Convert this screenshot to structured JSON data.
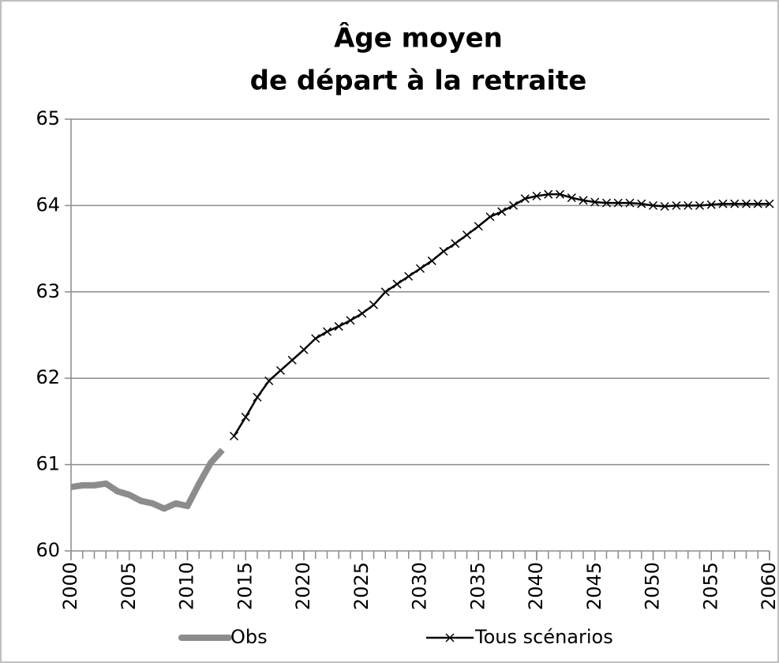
{
  "chart_data": {
    "type": "line",
    "title": [
      "Âge moyen",
      "de départ à la retraite"
    ],
    "x": [
      2000,
      2001,
      2002,
      2003,
      2004,
      2005,
      2006,
      2007,
      2008,
      2009,
      2010,
      2011,
      2012,
      2013,
      2014,
      2015,
      2016,
      2017,
      2018,
      2019,
      2020,
      2021,
      2022,
      2023,
      2024,
      2025,
      2026,
      2027,
      2028,
      2029,
      2030,
      2031,
      2032,
      2033,
      2034,
      2035,
      2036,
      2037,
      2038,
      2039,
      2040,
      2041,
      2042,
      2043,
      2044,
      2045,
      2046,
      2047,
      2048,
      2049,
      2050,
      2051,
      2052,
      2053,
      2054,
      2055,
      2056,
      2057,
      2058,
      2059,
      2060
    ],
    "series": [
      {
        "name": "Obs",
        "color": "#8c8c8c",
        "marker": "none",
        "values": [
          60.74,
          60.76,
          60.76,
          60.78,
          60.69,
          60.65,
          60.58,
          60.55,
          60.49,
          60.55,
          60.52,
          60.78,
          61.02,
          61.17,
          null,
          null,
          null,
          null,
          null,
          null,
          null,
          null,
          null,
          null,
          null,
          null,
          null,
          null,
          null,
          null,
          null,
          null,
          null,
          null,
          null,
          null,
          null,
          null,
          null,
          null,
          null,
          null,
          null,
          null,
          null,
          null,
          null,
          null,
          null,
          null,
          null,
          null,
          null,
          null,
          null,
          null,
          null,
          null,
          null,
          null,
          null
        ]
      },
      {
        "name": "Tous scénarios",
        "color": "#000000",
        "marker": "x",
        "values": [
          null,
          null,
          null,
          null,
          null,
          null,
          null,
          null,
          null,
          null,
          null,
          null,
          null,
          null,
          61.33,
          61.55,
          61.78,
          61.97,
          62.09,
          62.21,
          62.33,
          62.46,
          62.54,
          62.6,
          62.67,
          62.75,
          62.85,
          63.0,
          63.09,
          63.18,
          63.27,
          63.36,
          63.47,
          63.56,
          63.66,
          63.76,
          63.87,
          63.93,
          64.0,
          64.08,
          64.11,
          64.13,
          64.13,
          64.09,
          64.06,
          64.04,
          64.03,
          64.03,
          64.03,
          64.02,
          64.0,
          63.99,
          64.0,
          64.0,
          64.0,
          64.01,
          64.02,
          64.02,
          64.02,
          64.02,
          64.02
        ]
      }
    ],
    "xlim": [
      2000,
      2060
    ],
    "xticks": [
      2000,
      2005,
      2010,
      2015,
      2020,
      2025,
      2030,
      2035,
      2040,
      2045,
      2050,
      2055,
      2060
    ],
    "ylim": [
      60,
      65
    ],
    "yticks": [
      60,
      61,
      62,
      63,
      64,
      65
    ],
    "grid": true,
    "legend": "bottom"
  }
}
